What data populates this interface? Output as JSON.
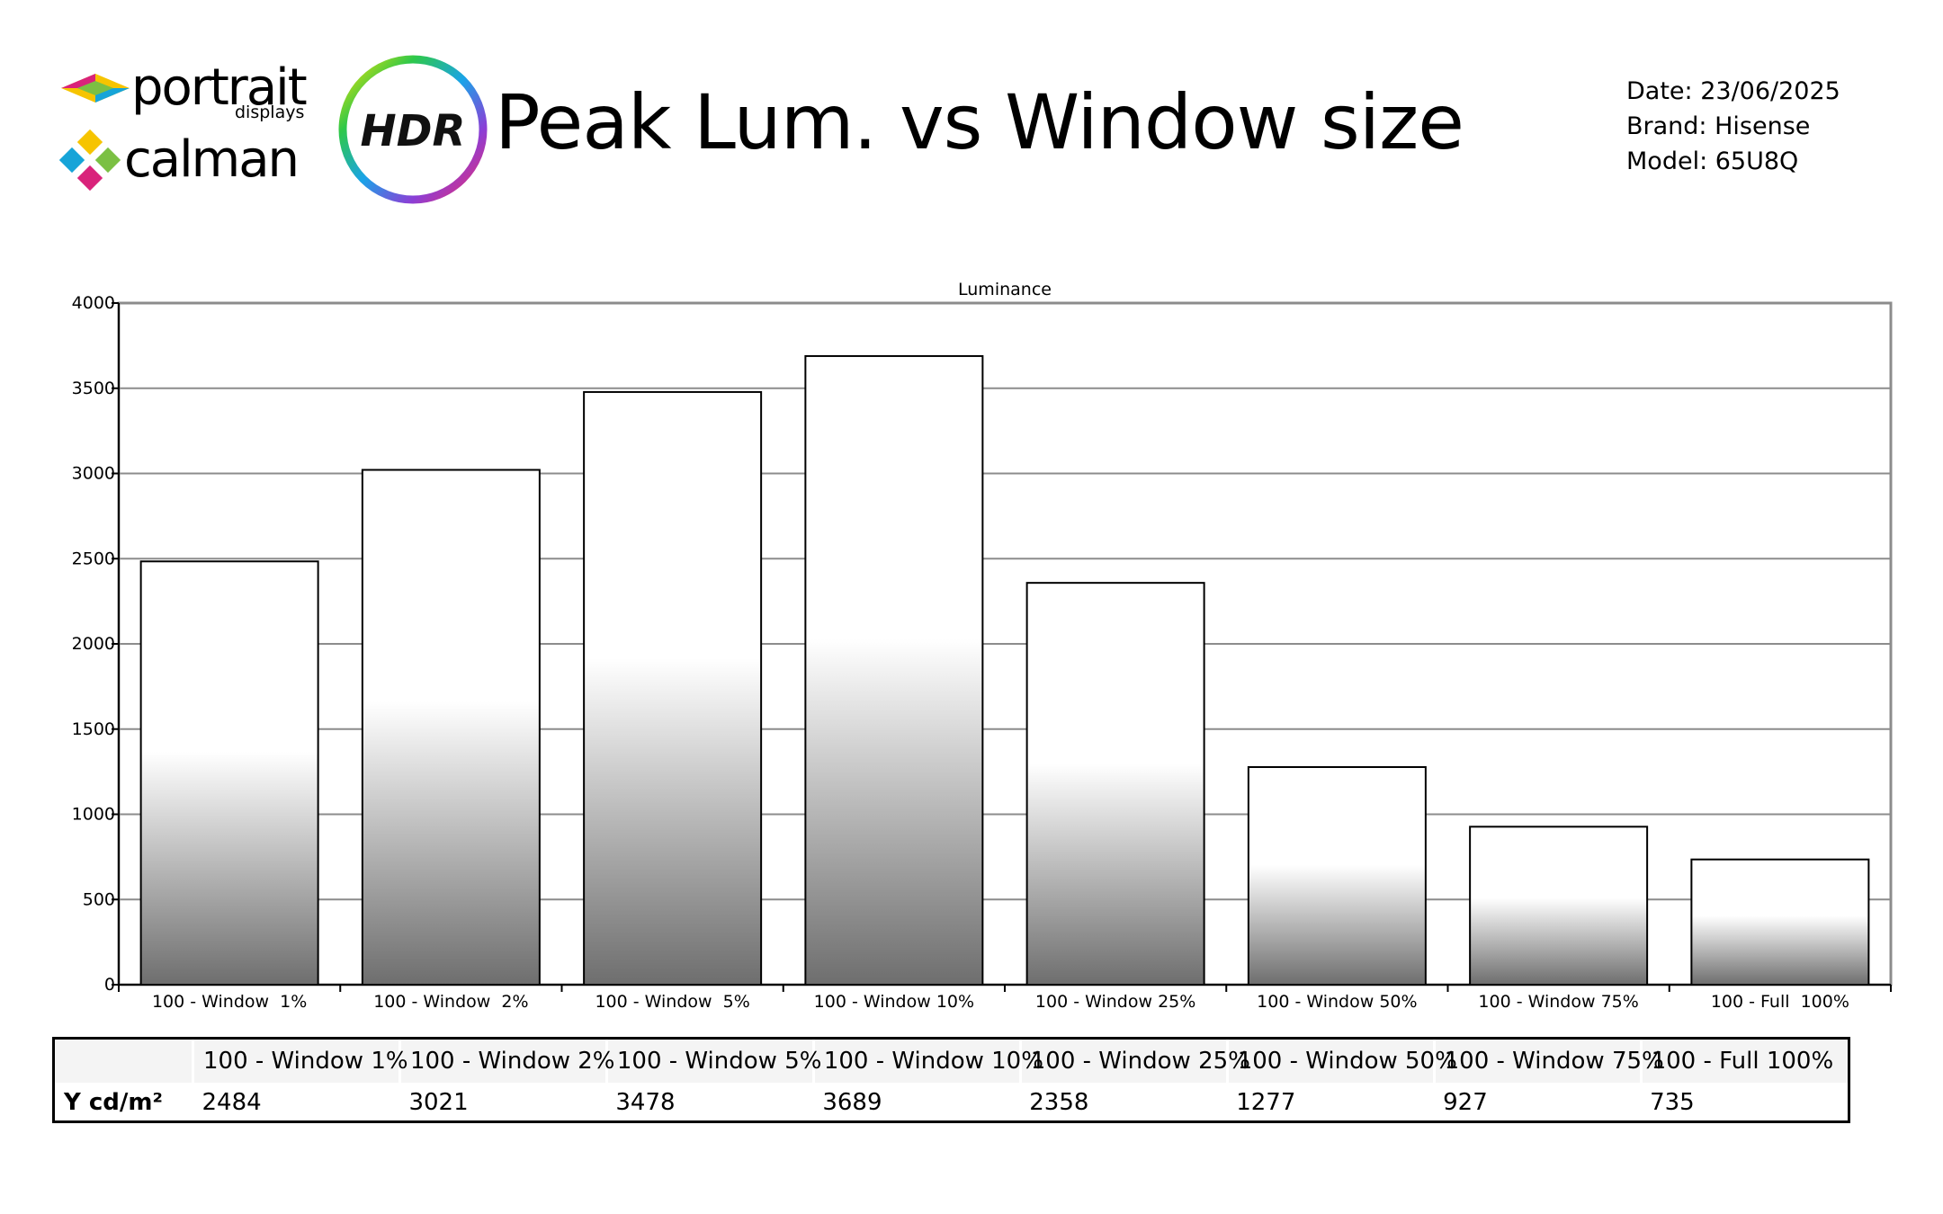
{
  "header": {
    "brand_portrait": "portrait",
    "brand_portrait_sub": "displays",
    "brand_calman": "calman",
    "hdr_badge": "HDR",
    "title": "Peak Lum. vs Window size",
    "date": "Date: 23/06/2025",
    "brand": "Brand: Hisense",
    "model": "Model: 65U8Q"
  },
  "colors": {
    "bar_top": "#ffffff",
    "bar_bottom": "#6e6e6e",
    "grid": "#8c8c8c",
    "axis": "#000000"
  },
  "chart_data": {
    "type": "bar",
    "title": "Luminance",
    "xlabel": "",
    "ylabel": "",
    "categories": [
      "100 - Window  1%",
      "100 - Window  2%",
      "100 - Window  5%",
      "100 - Window 10%",
      "100 - Window 25%",
      "100 - Window 50%",
      "100 - Window 75%",
      "100 - Full  100%"
    ],
    "values": [
      2484,
      3021,
      3478,
      3689,
      2358,
      1277,
      927,
      735
    ],
    "ylim": [
      0,
      4000
    ],
    "yticks": [
      0,
      500,
      1000,
      1500,
      2000,
      2500,
      3000,
      3500,
      4000
    ],
    "grid": true
  },
  "table": {
    "row_label": "Y cd/m²",
    "headers": [
      "100 - Window  1%",
      "100 - Window  2%",
      "100 - Window  5%",
      "100 - Window 10%",
      "100 - Window 25%",
      "100 - Window 50%",
      "100 - Window 75%",
      "100 - Full  100%"
    ],
    "values": [
      "2484",
      "3021",
      "3478",
      "3689",
      "2358",
      "1277",
      "927",
      "735"
    ]
  }
}
